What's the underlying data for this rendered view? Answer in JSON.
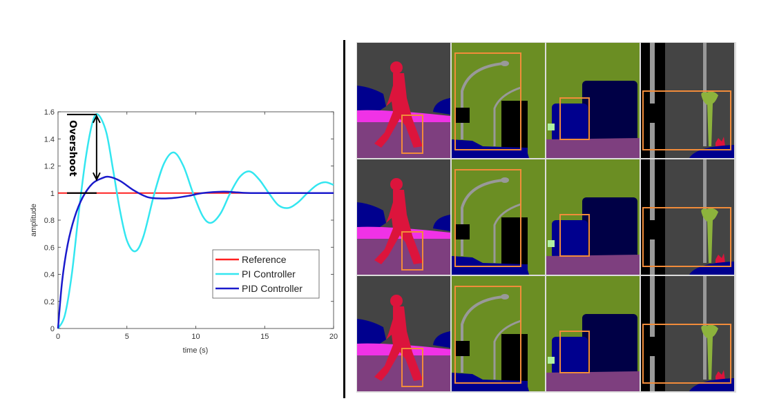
{
  "chart_data": {
    "type": "line",
    "xlabel": "time (s)",
    "ylabel": "amplitude",
    "xlim": [
      0,
      20
    ],
    "ylim": [
      0,
      1.6
    ],
    "xticks": [
      "0",
      "5",
      "10",
      "15",
      "20"
    ],
    "yticks": [
      "0",
      "0.2",
      "0.4",
      "0.6",
      "0.8",
      "1",
      "1.2",
      "1.4",
      "1.6"
    ],
    "grid": false,
    "legend_position": "bottom-right",
    "annotation": {
      "text": "Overshoot",
      "from": 1.58,
      "to": 1.12,
      "x": 2.8
    },
    "series": [
      {
        "name": "Reference",
        "color": "#ff2020",
        "x": [
          0,
          20
        ],
        "y": [
          1,
          1
        ]
      },
      {
        "name": "PI Controller",
        "color": "#33e6f0",
        "x": [
          0,
          0.5,
          1,
          1.5,
          2,
          2.5,
          2.9,
          3.5,
          4,
          4.5,
          5,
          5.6,
          6.2,
          7,
          7.7,
          8.4,
          9.1,
          9.8,
          10.5,
          11.1,
          11.8,
          12.5,
          13.2,
          13.9,
          14.6,
          15.3,
          16,
          16.7,
          17.4,
          18.1,
          18.8,
          19.4,
          20
        ],
        "y": [
          0,
          0.1,
          0.4,
          0.85,
          1.25,
          1.52,
          1.58,
          1.45,
          1.17,
          0.87,
          0.65,
          0.57,
          0.68,
          1.0,
          1.22,
          1.3,
          1.2,
          1.0,
          0.83,
          0.78,
          0.85,
          1.0,
          1.12,
          1.16,
          1.1,
          1.0,
          0.91,
          0.89,
          0.93,
          1.0,
          1.06,
          1.08,
          1.06
        ]
      },
      {
        "name": "PID Controller",
        "color": "#1a1acc",
        "x": [
          0,
          0.3,
          0.7,
          1.2,
          1.8,
          2.5,
          3.2,
          3.7,
          4.5,
          5.5,
          6.5,
          7.5,
          8.5,
          9.5,
          10.5,
          12,
          13,
          14,
          17,
          20
        ],
        "y": [
          0,
          0.35,
          0.62,
          0.82,
          0.97,
          1.07,
          1.11,
          1.12,
          1.09,
          1.02,
          0.97,
          0.96,
          0.965,
          0.98,
          1.0,
          1.01,
          1.005,
          1.0,
          1.0,
          1.0
        ]
      }
    ]
  },
  "segmentation_grid": {
    "rows": 3,
    "columns": 4,
    "highlight_color": "#f28c3a",
    "class_colors": {
      "road": "#7e3f7f",
      "sky": "#444444",
      "person": "#dc143c",
      "vegetation": "#6b8e23",
      "car": "#00008e",
      "truck": "#000046",
      "pole": "#999999",
      "sidewalk": "#f032e6",
      "building": "#000000"
    }
  }
}
